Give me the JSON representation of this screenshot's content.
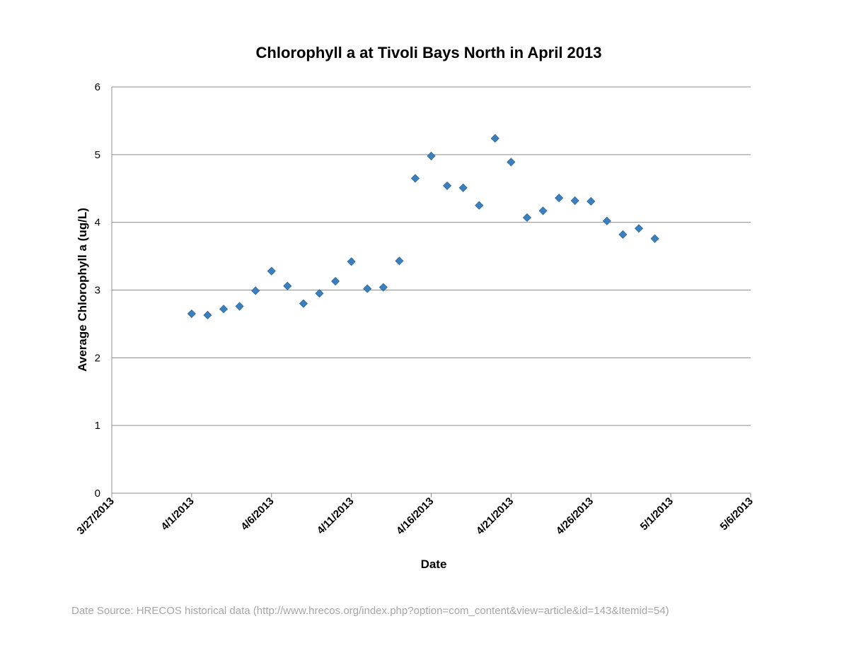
{
  "source_note": "Date Source: HRECOS historical data (http://www.hrecos.org/index.php?option=com_content&view=article&id=143&Itemid=54)",
  "chart_data": {
    "type": "scatter",
    "title": "Chlorophyll a at Tivoli Bays North in April 2013",
    "xlabel": "Date",
    "ylabel": "Average Chlorophyll a (ug/L)",
    "x_ticks": [
      "3/27/2013",
      "4/1/2013",
      "4/6/2013",
      "4/11/2013",
      "4/16/2013",
      "4/21/2013",
      "4/26/2013",
      "5/1/2013",
      "5/6/2013"
    ],
    "xlim": [
      "2013-03-27",
      "2013-05-06"
    ],
    "ylim": [
      0,
      6
    ],
    "y_ticks": [
      "0",
      "1",
      "2",
      "3",
      "4",
      "5",
      "6"
    ],
    "grid": true,
    "legend": "none",
    "marker": "diamond",
    "color": "#3b7fbf",
    "series": [
      {
        "points": [
          {
            "x": "2013-04-01",
            "y": 2.65
          },
          {
            "x": "2013-04-02",
            "y": 2.63
          },
          {
            "x": "2013-04-03",
            "y": 2.72
          },
          {
            "x": "2013-04-04",
            "y": 2.76
          },
          {
            "x": "2013-04-05",
            "y": 2.99
          },
          {
            "x": "2013-04-06",
            "y": 3.28
          },
          {
            "x": "2013-04-07",
            "y": 3.06
          },
          {
            "x": "2013-04-08",
            "y": 2.8
          },
          {
            "x": "2013-04-09",
            "y": 2.95
          },
          {
            "x": "2013-04-10",
            "y": 3.13
          },
          {
            "x": "2013-04-11",
            "y": 3.42
          },
          {
            "x": "2013-04-12",
            "y": 3.02
          },
          {
            "x": "2013-04-13",
            "y": 3.04
          },
          {
            "x": "2013-04-14",
            "y": 3.43
          },
          {
            "x": "2013-04-15",
            "y": 4.65
          },
          {
            "x": "2013-04-16",
            "y": 4.98
          },
          {
            "x": "2013-04-17",
            "y": 4.54
          },
          {
            "x": "2013-04-18",
            "y": 4.51
          },
          {
            "x": "2013-04-19",
            "y": 4.25
          },
          {
            "x": "2013-04-20",
            "y": 5.24
          },
          {
            "x": "2013-04-21",
            "y": 4.89
          },
          {
            "x": "2013-04-22",
            "y": 4.07
          },
          {
            "x": "2013-04-23",
            "y": 4.17
          },
          {
            "x": "2013-04-24",
            "y": 4.36
          },
          {
            "x": "2013-04-25",
            "y": 4.32
          },
          {
            "x": "2013-04-26",
            "y": 4.31
          },
          {
            "x": "2013-04-27",
            "y": 4.02
          },
          {
            "x": "2013-04-28",
            "y": 3.82
          },
          {
            "x": "2013-04-29",
            "y": 3.91
          },
          {
            "x": "2013-04-30",
            "y": 3.76
          }
        ]
      }
    ]
  }
}
